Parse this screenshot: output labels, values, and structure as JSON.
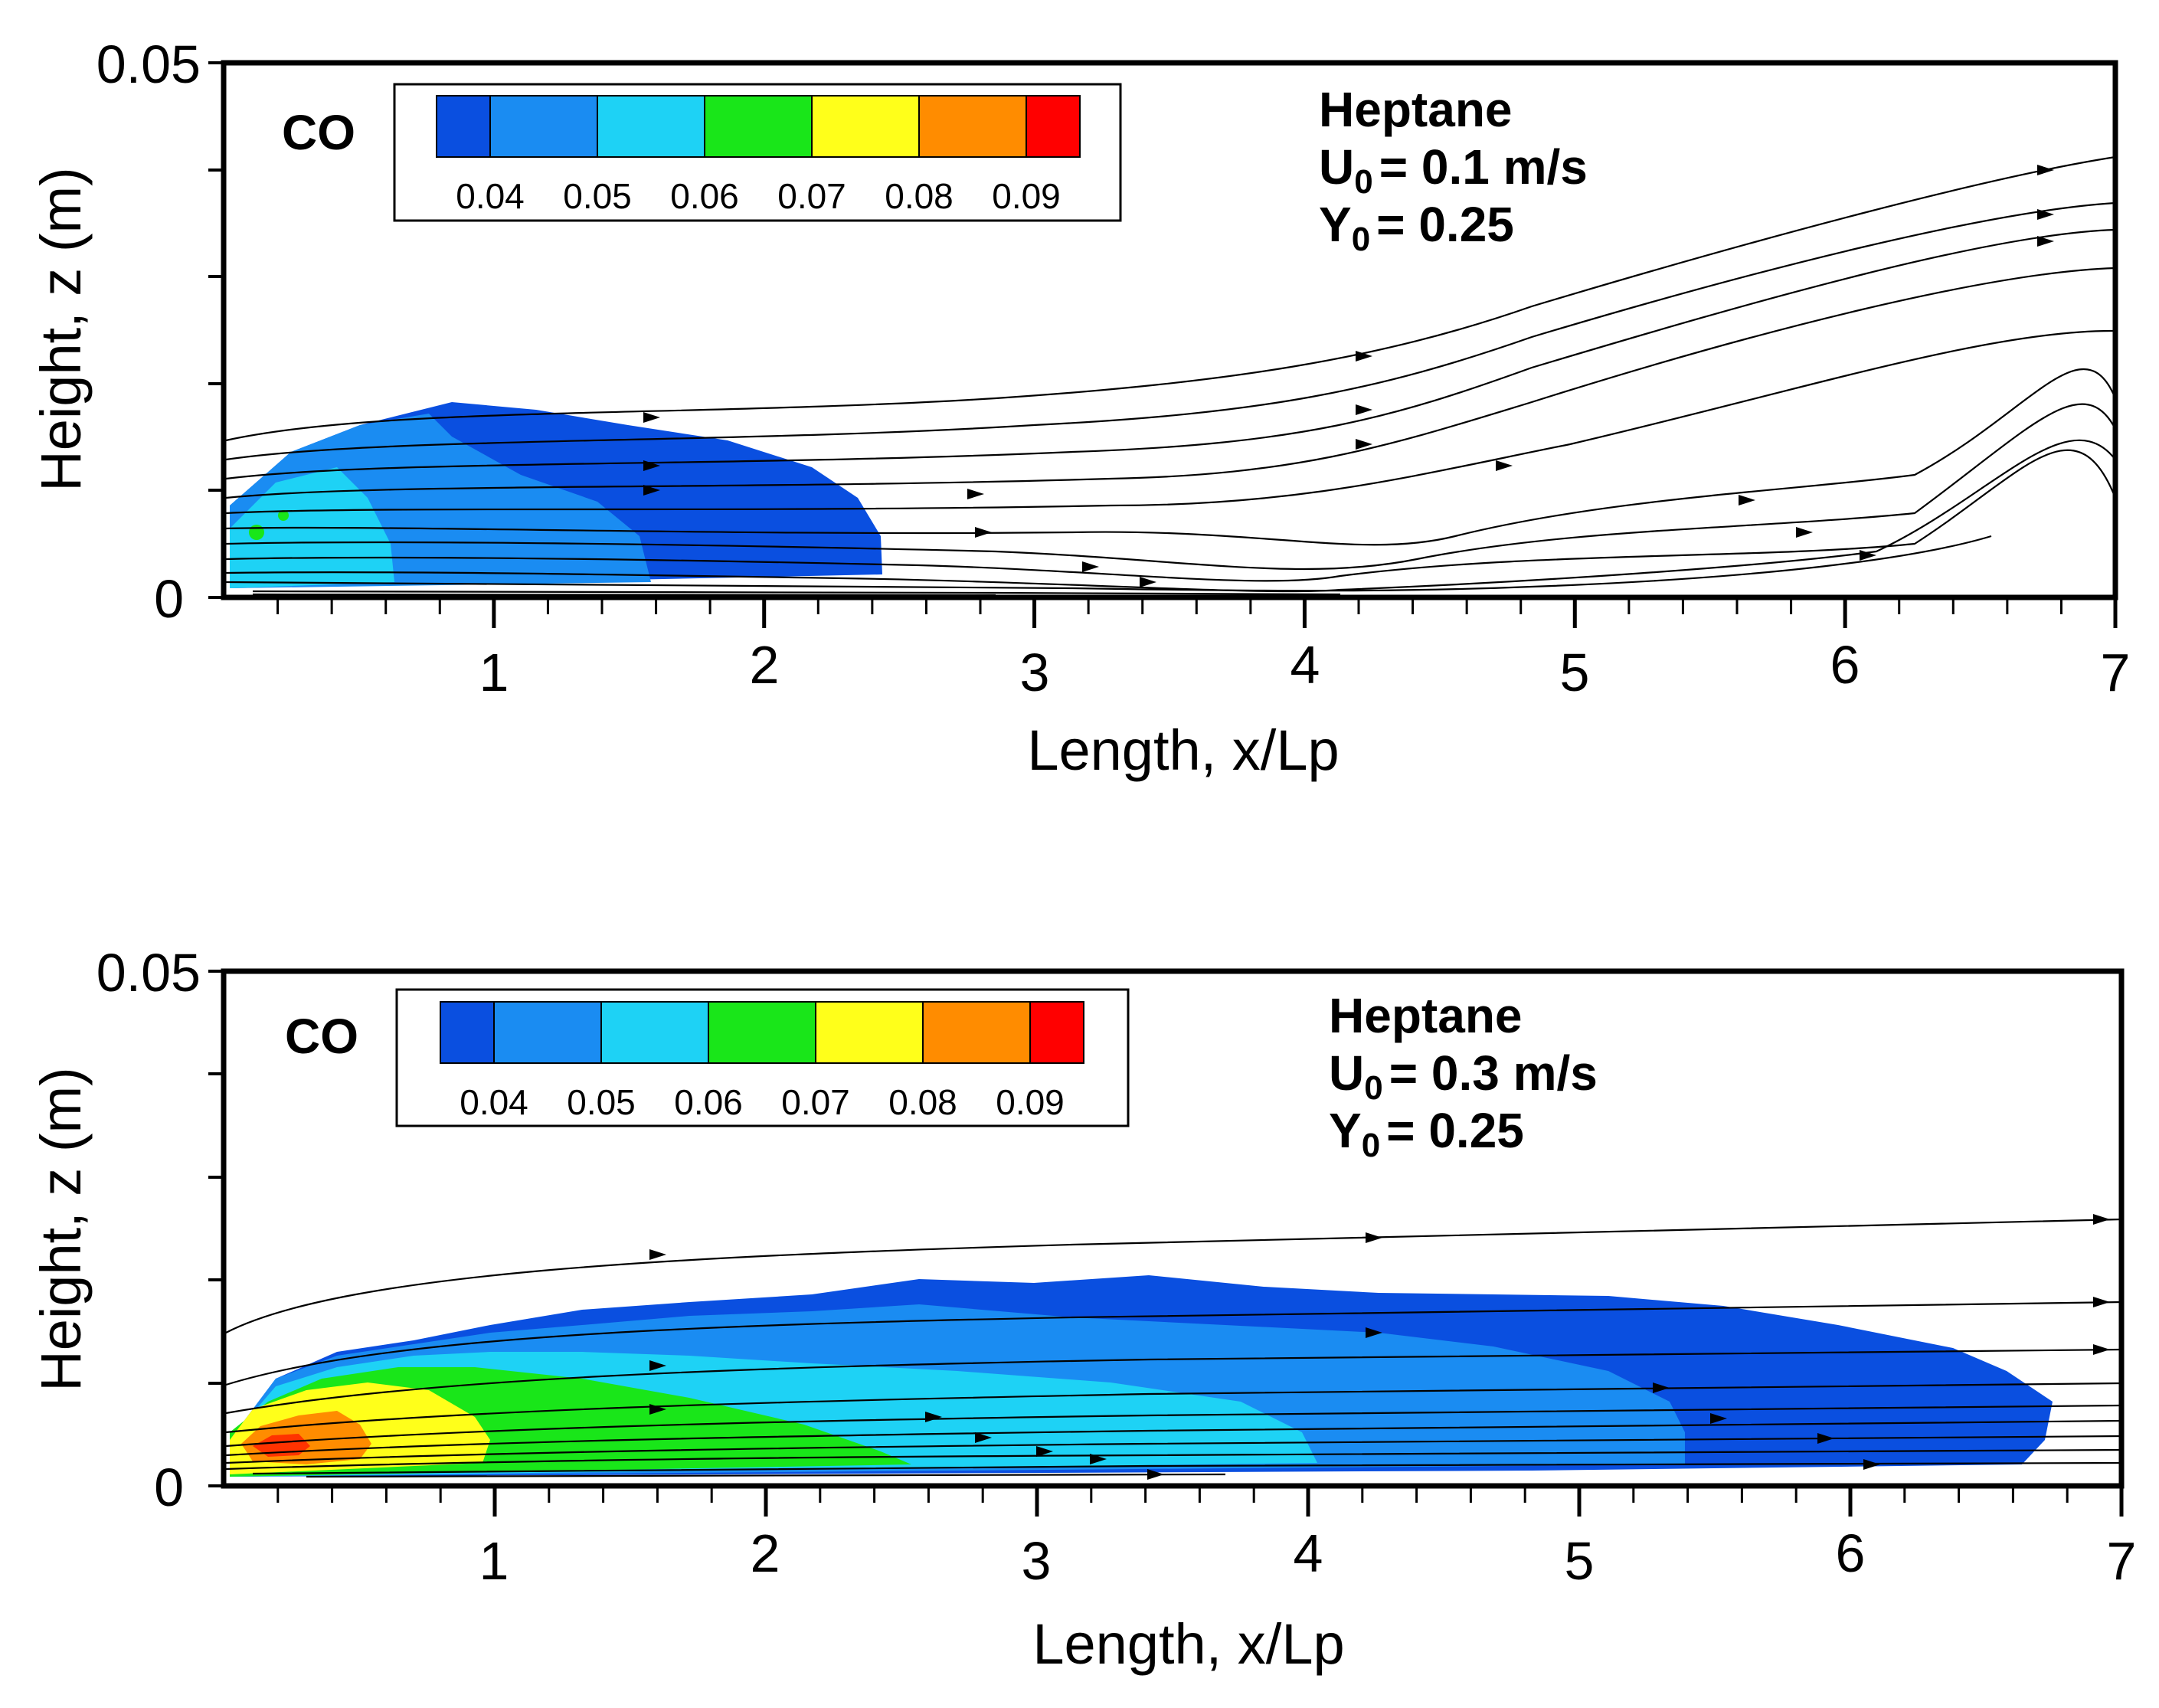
{
  "colors": {
    "levels": [
      "#0a4fe0",
      "#1a8cf2",
      "#1ed2f5",
      "#19e619",
      "#ffff1a",
      "#ff8c00",
      "#ff0000"
    ],
    "line": "#000000",
    "background": "#ffffff"
  },
  "chart_data": [
    {
      "type": "contour",
      "species": "CO",
      "fuel": "Heptane",
      "velocity_sym": "U",
      "velocity_sub": "0",
      "velocity_txt": "= 0.1 m/s",
      "fraction_sym": "Y",
      "fraction_sub": "0",
      "fraction_txt": "= 0.25",
      "xlabel": "Length, x/Lp",
      "ylabel": "Height, z (m)",
      "xlim": [
        0,
        7
      ],
      "ylim": [
        0,
        0.05
      ],
      "xticks": [
        "1",
        "2",
        "3",
        "4",
        "5",
        "6",
        "7"
      ],
      "yticks": [
        "0",
        "0.05"
      ],
      "colorbar_labels": [
        "0.04",
        "0.05",
        "0.06",
        "0.07",
        "0.08",
        "0.09"
      ],
      "contour_extent": {
        "max_x": 2.43,
        "max_z": 0.0178
      }
    },
    {
      "type": "contour",
      "species": "CO",
      "fuel": "Heptane",
      "velocity_sym": "U",
      "velocity_sub": "0",
      "velocity_txt": "= 0.3 m/s",
      "fraction_sym": "Y",
      "fraction_sub": "0",
      "fraction_txt": "= 0.25",
      "xlabel": "Length, x/Lp",
      "ylabel": "Height, z (m)",
      "xlim": [
        0,
        7
      ],
      "ylim": [
        0,
        0.05
      ],
      "xticks": [
        "1",
        "2",
        "3",
        "4",
        "5",
        "6",
        "7"
      ],
      "yticks": [
        "0",
        "0.05"
      ],
      "colorbar_labels": [
        "0.04",
        "0.05",
        "0.06",
        "0.07",
        "0.08",
        "0.09"
      ],
      "contour_extent": {
        "max_x": 6.7,
        "max_z": 0.0205
      }
    }
  ]
}
